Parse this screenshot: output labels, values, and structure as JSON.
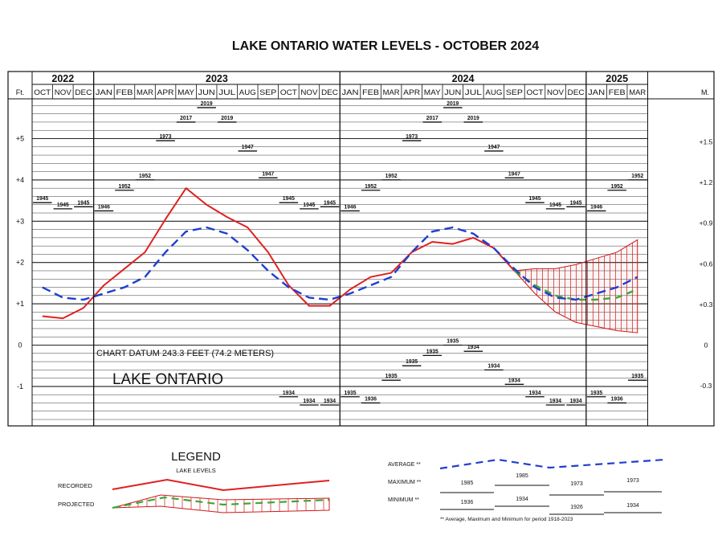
{
  "chart_data": {
    "type": "line",
    "title": "LAKE ONTARIO WATER LEVELS - OCTOBER 2024",
    "ylabel_left": "Ft.",
    "ylabel_right": "M.",
    "ylim": [
      -1.9,
      5.9
    ],
    "yticks_left": [
      "+5",
      "+4",
      "+3",
      "+2",
      "+1",
      "0",
      "-1"
    ],
    "yticks_right": [
      "+1.5",
      "+1.2",
      "+0.9",
      "+0.6",
      "+0.3",
      "0",
      "-0.3"
    ],
    "years": [
      {
        "label": "2022"
      },
      {
        "label": "2023"
      },
      {
        "label": "2024"
      },
      {
        "label": "2025"
      }
    ],
    "categories": [
      "OCT",
      "NOV",
      "DEC",
      "JAN",
      "FEB",
      "MAR",
      "APR",
      "MAY",
      "JUN",
      "JUL",
      "AUG",
      "SEP",
      "OCT",
      "NOV",
      "DEC",
      "JAN",
      "FEB",
      "MAR",
      "APR",
      "MAY",
      "JUN",
      "JUL",
      "AUG",
      "SEP",
      "OCT",
      "NOV",
      "DEC",
      "JAN",
      "FEB",
      "MAR"
    ],
    "series": [
      {
        "name": "RECORDED",
        "color": "#e02020",
        "style": "solid",
        "values": [
          0.7,
          0.65,
          0.9,
          1.45,
          1.85,
          2.25,
          3.05,
          3.8,
          3.4,
          3.1,
          2.85,
          2.25,
          1.45,
          0.95,
          0.95,
          1.35,
          1.65,
          1.75,
          2.25,
          2.5,
          2.45,
          2.6,
          2.35,
          1.8,
          null,
          null,
          null,
          null,
          null,
          null
        ]
      },
      {
        "name": "PROJECTED",
        "color": "#3aa83a",
        "style": "dashed",
        "values": [
          null,
          null,
          null,
          null,
          null,
          null,
          null,
          null,
          null,
          null,
          null,
          null,
          null,
          null,
          null,
          null,
          null,
          null,
          null,
          null,
          null,
          null,
          null,
          1.8,
          1.45,
          1.2,
          1.1,
          1.1,
          1.15,
          1.35
        ]
      },
      {
        "name": "AVERAGE",
        "color": "#1f3fd0",
        "style": "dashed",
        "values": [
          1.4,
          1.15,
          1.1,
          1.25,
          1.4,
          1.65,
          2.25,
          2.75,
          2.85,
          2.7,
          2.3,
          1.8,
          1.4,
          1.15,
          1.1,
          1.25,
          1.45,
          1.65,
          2.25,
          2.75,
          2.85,
          2.7,
          2.35,
          1.85,
          1.4,
          1.15,
          1.1,
          1.25,
          1.4,
          1.65
        ]
      }
    ],
    "projection_band": {
      "upper": [
        null,
        null,
        null,
        null,
        null,
        null,
        null,
        null,
        null,
        null,
        null,
        null,
        null,
        null,
        null,
        null,
        null,
        null,
        null,
        null,
        null,
        null,
        null,
        1.8,
        1.85,
        1.85,
        1.95,
        2.1,
        2.25,
        2.55
      ],
      "lower": [
        null,
        null,
        null,
        null,
        null,
        null,
        null,
        null,
        null,
        null,
        null,
        null,
        null,
        null,
        null,
        null,
        null,
        null,
        null,
        null,
        null,
        null,
        null,
        1.8,
        1.25,
        0.8,
        0.55,
        0.45,
        0.35,
        0.3
      ]
    },
    "maximum": {
      "values": [
        3.45,
        3.3,
        3.35,
        3.25,
        3.75,
        4.0,
        4.95,
        5.4,
        5.75,
        5.4,
        4.7,
        4.05,
        3.45,
        3.3,
        3.35,
        3.25,
        3.75,
        4.0,
        4.95,
        5.4,
        5.75,
        5.4,
        4.7,
        4.05,
        3.45,
        3.3,
        3.35,
        3.25,
        3.75,
        4.0
      ],
      "years": [
        "1945",
        "1945",
        "1945",
        "1946",
        "1952",
        "1952",
        "1973",
        "2017",
        "2019",
        "2019",
        "1947",
        "1947",
        "1945",
        "1945",
        "1945",
        "1946",
        "1952",
        "1952",
        "1973",
        "2017",
        "2019",
        "2019",
        "1947",
        "1947",
        "1945",
        "1945",
        "1945",
        "1946",
        "1952",
        "1952"
      ]
    },
    "minimum": {
      "values": [
        null,
        null,
        null,
        null,
        null,
        null,
        null,
        null,
        null,
        null,
        null,
        null,
        -1.25,
        -1.45,
        -1.45,
        -1.25,
        -1.4,
        -0.85,
        -0.5,
        -0.25,
        0.0,
        -0.15,
        -0.6,
        -0.95,
        -1.25,
        -1.45,
        -1.45,
        -1.25,
        -1.4,
        -0.85
      ],
      "years": [
        "",
        "",
        "",
        "",
        "",
        "",
        "",
        "",
        "",
        "",
        "",
        "",
        "1934",
        "1934",
        "1934",
        "1935",
        "1936",
        "1935",
        "1935",
        "1935",
        "1935",
        "1934",
        "1934",
        "1934",
        "1934",
        "1934",
        "1934",
        "1935",
        "1936",
        "1935"
      ]
    },
    "datum_note": "CHART DATUM 243.3 FEET (74.2 METERS)",
    "lake_label": "LAKE ONTARIO"
  },
  "legend": {
    "title": "LEGEND",
    "subtitle": "LAKE LEVELS",
    "recorded_label": "RECORDED",
    "projected_label": "PROJECTED",
    "average_label": "AVERAGE **",
    "maximum_label": "MAXIMUM **",
    "minimum_label": "MINIMUM **",
    "max_samples": [
      "1985",
      "1985",
      "1973",
      "1973"
    ],
    "min_samples": [
      "1936",
      "1934",
      "1926",
      "1934"
    ],
    "footnote": "** Average, Maximum and Minimum for period 1918-2023",
    "colors": {
      "recorded": "#e02020",
      "projected": "#3aa83a",
      "average": "#1f3fd0"
    }
  }
}
